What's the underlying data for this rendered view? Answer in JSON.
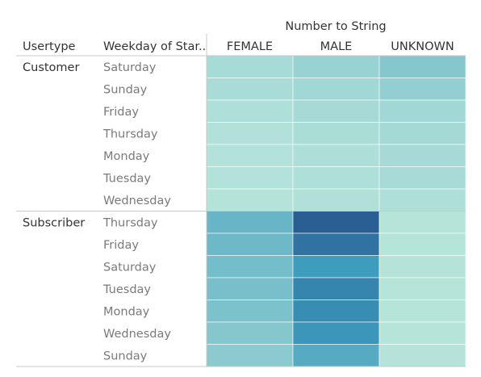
{
  "chart_data": {
    "type": "heatmap",
    "column_field_title": "Number to String",
    "row_field_headers": [
      "Usertype",
      "Weekday of Star.."
    ],
    "columns": [
      "FEMALE",
      "MALE",
      "UNKNOWN"
    ],
    "groups": [
      {
        "usertype": "Customer",
        "rows": [
          {
            "weekday": "Saturday",
            "values": [
              0.2,
              0.3,
              0.4
            ]
          },
          {
            "weekday": "Sunday",
            "values": [
              0.18,
              0.26,
              0.33
            ]
          },
          {
            "weekday": "Friday",
            "values": [
              0.12,
              0.21,
              0.26
            ]
          },
          {
            "weekday": "Thursday",
            "values": [
              0.09,
              0.16,
              0.23
            ]
          },
          {
            "weekday": "Monday",
            "values": [
              0.08,
              0.14,
              0.21
            ]
          },
          {
            "weekday": "Tuesday",
            "values": [
              0.08,
              0.13,
              0.19
            ]
          },
          {
            "weekday": "Wednesday",
            "values": [
              0.06,
              0.1,
              0.12
            ]
          }
        ]
      },
      {
        "usertype": "Subscriber",
        "rows": [
          {
            "weekday": "Thursday",
            "values": [
              0.55,
              1.0,
              0.04
            ]
          },
          {
            "weekday": "Friday",
            "values": [
              0.52,
              0.92,
              0.04
            ]
          },
          {
            "weekday": "Saturday",
            "values": [
              0.49,
              0.74,
              0.05
            ]
          },
          {
            "weekday": "Tuesday",
            "values": [
              0.47,
              0.84,
              0.04
            ]
          },
          {
            "weekday": "Monday",
            "values": [
              0.45,
              0.81,
              0.04
            ]
          },
          {
            "weekday": "Wednesday",
            "values": [
              0.4,
              0.77,
              0.04
            ]
          },
          {
            "weekday": "Sunday",
            "values": [
              0.37,
              0.63,
              0.05
            ]
          }
        ]
      }
    ],
    "value_scale": "relative intensity, 0 = lightest, 1 = darkest",
    "color_scale": [
      "#b9e6da",
      "#a3d8d6",
      "#72bcc9",
      "#3c9bbd",
      "#2a5f93"
    ]
  }
}
